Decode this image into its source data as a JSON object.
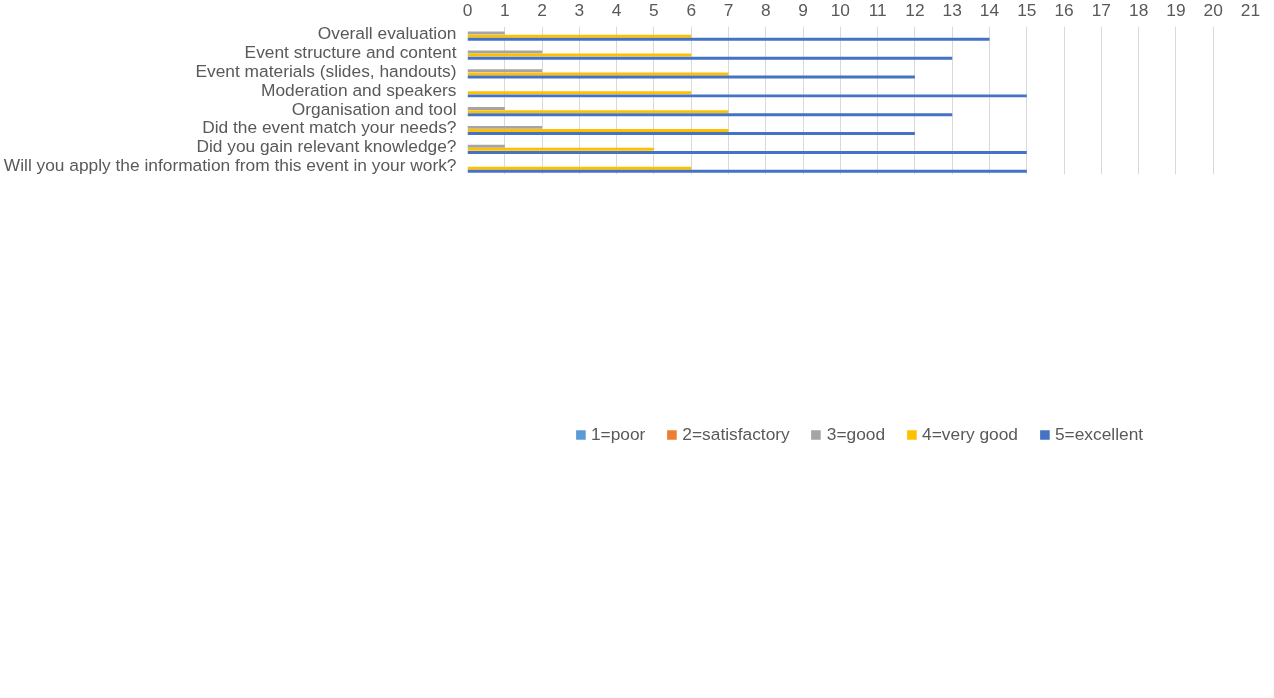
{
  "chart_data": {
    "type": "bar",
    "orientation": "horizontal",
    "categories": [
      "Overall evaluation",
      "Event structure and content",
      "Event materials (slides, handouts)",
      "Moderation and speakers",
      "Organisation and tool",
      "Did the event match your needs?",
      "Did you gain relevant knowledge?",
      "Will you apply the information from this event in your work?"
    ],
    "series": [
      {
        "name": "1=poor",
        "color": "#5b9bd5",
        "values": [
          0,
          0,
          0,
          0,
          0,
          0,
          0,
          0
        ]
      },
      {
        "name": "2=satisfactory",
        "color": "#ed7d31",
        "values": [
          0,
          0,
          0,
          0,
          0,
          0,
          0,
          0
        ]
      },
      {
        "name": "3=good",
        "color": "#a5a5a5",
        "values": [
          1,
          2,
          2,
          0,
          1,
          2,
          1,
          0
        ]
      },
      {
        "name": "4=very good",
        "color": "#ffc000",
        "values": [
          6,
          6,
          7,
          6,
          7,
          7,
          5,
          6
        ]
      },
      {
        "name": "5=excellent",
        "color": "#4472c4",
        "values": [
          14,
          13,
          12,
          15,
          13,
          12,
          15,
          15
        ]
      }
    ],
    "xlim": [
      0,
      21
    ],
    "xticks": [
      0,
      1,
      2,
      3,
      4,
      5,
      6,
      7,
      8,
      9,
      10,
      11,
      12,
      13,
      14,
      15,
      16,
      17,
      18,
      19,
      20,
      21
    ],
    "grid": "x",
    "legend": "bottom"
  }
}
